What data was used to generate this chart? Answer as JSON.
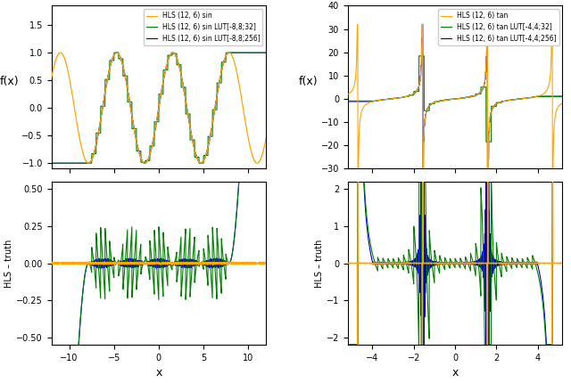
{
  "sin_xlim": [
    -12,
    12
  ],
  "sin_ylim": [
    -1.1,
    1.85
  ],
  "sin_err_ylim": [
    -0.55,
    0.55
  ],
  "tan_xlim": [
    -5.2,
    5.2
  ],
  "tan_ylim": [
    -30,
    40
  ],
  "tan_err_ylim": [
    -2.2,
    2.2
  ],
  "sin_lut32_range": [
    -8,
    8
  ],
  "sin_lut32_steps": 32,
  "sin_lut256_range": [
    -8,
    8
  ],
  "sin_lut256_steps": 256,
  "tan_lut32_range": [
    -4,
    4
  ],
  "tan_lut32_steps": 32,
  "tan_lut256_range": [
    -4,
    4
  ],
  "tan_lut256_steps": 256,
  "color_orange": "#FFA500",
  "color_green": "#008000",
  "color_blue": "#0000CD",
  "legend_sin": [
    "HLS (12, 6) sin",
    "HLS (12, 6) sin LUT[-8,8;32]",
    "HLS (12, 6) sin LUT[-8,8;256]"
  ],
  "legend_tan": [
    "HLS (12, 6) tan",
    "HLS (12, 6) tan LUT[-4,4;32]",
    "HLS (12, 6) tan LUT[-4,4;256]"
  ],
  "ylabel_top": "f(x)",
  "ylabel_bot": "HLS – truth",
  "xlabel": "x",
  "sin_xticks": [
    -10,
    -5,
    0,
    5,
    10
  ],
  "tan_xticks": [
    -4,
    -2,
    0,
    2,
    4
  ],
  "sin_yticks_top": [
    -1.0,
    -0.5,
    0.0,
    0.5,
    1.0,
    1.5
  ],
  "sin_yticks_bot": [
    -0.5,
    -0.25,
    0.0,
    0.25,
    0.5
  ],
  "tan_yticks_top": [
    -30,
    -20,
    -10,
    0,
    10,
    20,
    30,
    40
  ],
  "tan_yticks_bot": [
    -2,
    -1,
    0,
    1,
    2
  ],
  "n_points": 3000
}
